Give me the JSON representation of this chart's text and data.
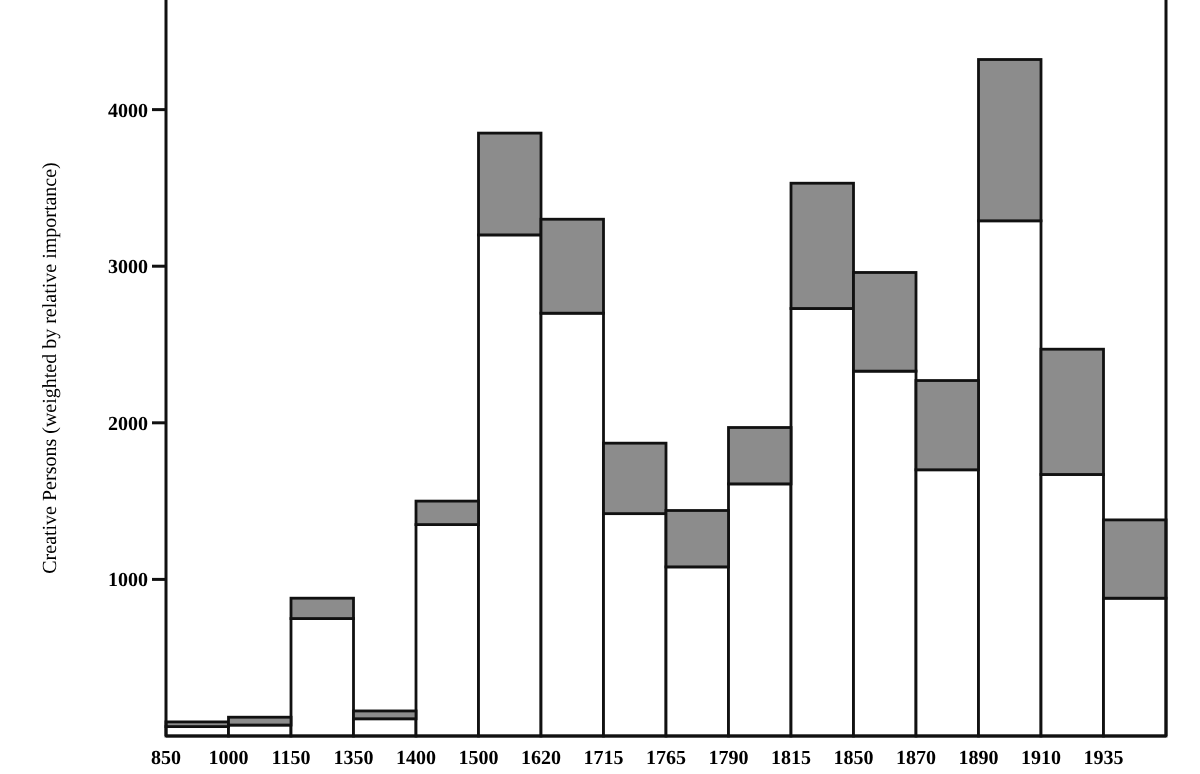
{
  "chart_data": {
    "type": "bar",
    "stacked": true,
    "ylabel": "Creative Persons (weighted by relative importance)",
    "categories": [
      "850",
      "1000",
      "1150",
      "1350",
      "1400",
      "1500",
      "1620",
      "1715",
      "1765",
      "1790",
      "1815",
      "1850",
      "1870",
      "1890",
      "1910",
      "1935"
    ],
    "series": [
      {
        "color": "#ffffff",
        "values": [
          60,
          70,
          750,
          110,
          1350,
          3200,
          2700,
          1420,
          1080,
          1610,
          2730,
          2330,
          1700,
          3290,
          1670,
          880
        ]
      },
      {
        "color": "#8c8c8c",
        "values": [
          30,
          50,
          130,
          50,
          150,
          650,
          600,
          450,
          360,
          360,
          800,
          630,
          570,
          1030,
          800,
          500
        ]
      }
    ],
    "ylim": [
      0,
      4700
    ],
    "yticks": [
      1000,
      2000,
      3000,
      4000
    ],
    "grid": false
  }
}
